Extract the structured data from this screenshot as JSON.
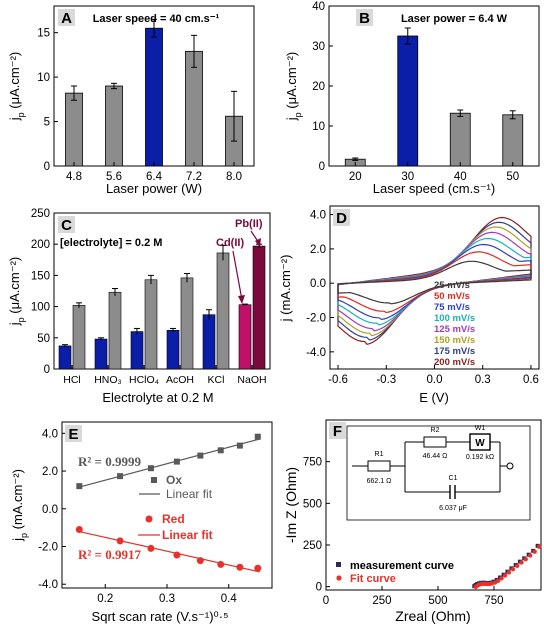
{
  "colors": {
    "grey": "#8c8c8c",
    "blue": "#0a1ea8",
    "pink": "#c0106a",
    "maroon": "#7a0a3c",
    "black": "#000000",
    "ox": "#595959",
    "red": "#e8312a",
    "panel_label_bg": "#d9d9d9",
    "meas": "#2b2b55",
    "fit": "#e8312a"
  },
  "chart_data": [
    {
      "id": "A",
      "type": "bar",
      "panel_label": "A",
      "annotation": "Laser speed = 40 cm.s⁻¹",
      "categories": [
        "4.8",
        "5.6",
        "6.4",
        "7.2",
        "8.0"
      ],
      "values": [
        8.2,
        9.0,
        15.5,
        12.9,
        5.6
      ],
      "errors": [
        0.8,
        0.3,
        1.0,
        1.8,
        2.8
      ],
      "highlight_index": 2,
      "xlabel": "Laser power (W)",
      "ylabel_main": "j",
      "ylabel_sub": "p",
      "ylabel_unit": " (μA.cm⁻²)",
      "ylim": [
        0,
        18
      ],
      "yticks": [
        "0",
        "5",
        "10",
        "15"
      ]
    },
    {
      "id": "B",
      "type": "bar",
      "panel_label": "B",
      "annotation": "Laser power = 6.4 W",
      "categories": [
        "20",
        "30",
        "40",
        "50"
      ],
      "values": [
        1.7,
        32.5,
        13.2,
        12.8
      ],
      "errors": [
        0.3,
        2.0,
        0.8,
        1.0
      ],
      "highlight_index": 1,
      "xlabel": "Laser speed (cm.s⁻¹)",
      "ylabel_main": "j",
      "ylabel_sub": "p",
      "ylabel_unit": " (μA.cm⁻²)",
      "ylim": [
        0,
        40
      ],
      "yticks": [
        "0",
        "10",
        "20",
        "30",
        "40"
      ]
    },
    {
      "id": "C",
      "type": "bar",
      "panel_label": "C",
      "annotation": "[electrolyte] = 0.2 M",
      "categories": [
        "HCl",
        "HNO₃",
        "HClO₄",
        "AcOH",
        "KCl",
        "NaOH"
      ],
      "series": [
        {
          "name": "Cd(II)",
          "values": [
            37,
            48,
            60,
            62,
            87,
            103
          ],
          "errors": [
            2,
            2,
            5,
            3,
            8,
            1
          ]
        },
        {
          "name": "Pb(II)",
          "values": [
            102,
            123,
            143,
            146,
            186,
            197
          ],
          "errors": [
            4,
            6,
            7,
            7,
            12,
            3
          ]
        }
      ],
      "callouts": [
        "Cd(II)",
        "Pb(II)"
      ],
      "xlabel": "Electrolyte at 0.2 M",
      "ylabel_main": "j",
      "ylabel_sub": "p",
      "ylabel_unit": " (μA.cm⁻²)",
      "ylim": [
        0,
        250
      ],
      "yticks": [
        "0",
        "50",
        "100",
        "150",
        "200",
        "250"
      ]
    },
    {
      "id": "D",
      "type": "line",
      "panel_label": "D",
      "series": [
        {
          "name": "25 mV/s",
          "color": "#3a3a3a",
          "scale": 0.32
        },
        {
          "name": "50 mV/s",
          "color": "#e0281f",
          "scale": 0.45
        },
        {
          "name": "75 mV/s",
          "color": "#2a3fc0",
          "scale": 0.55
        },
        {
          "name": "100 mV/s",
          "color": "#1ab3b3",
          "scale": 0.63
        },
        {
          "name": "125 mV/s",
          "color": "#9c3cc0",
          "scale": 0.71
        },
        {
          "name": "150 mV/s",
          "color": "#b0a020",
          "scale": 0.78
        },
        {
          "name": "175 mV/s",
          "color": "#2a3f90",
          "scale": 0.84
        },
        {
          "name": "200 mV/s",
          "color": "#8a1f1f",
          "scale": 0.9
        }
      ],
      "xlabel": "E (V)",
      "ylabel": "j (mA.cm⁻²)",
      "xlim": [
        -0.65,
        0.65
      ],
      "ylim": [
        -5,
        4.5
      ],
      "xticks": [
        "-0.6",
        "-0.3",
        "0.0",
        "0.3",
        "0.6"
      ],
      "yticks": [
        "-4.0",
        "-2.0",
        "0.0",
        "2.0",
        "4.0"
      ]
    },
    {
      "id": "E",
      "type": "scatter",
      "panel_label": "E",
      "series": [
        {
          "name": "Ox",
          "fit_name": "Linear fit",
          "x": [
            0.158,
            0.224,
            0.274,
            0.316,
            0.354,
            0.387,
            0.418,
            0.447
          ],
          "y": [
            1.2,
            1.73,
            2.15,
            2.5,
            2.82,
            3.1,
            3.35,
            3.82
          ],
          "r2": "R² = 0.9999"
        },
        {
          "name": "Red",
          "fit_name": "Linear fit",
          "x": [
            0.158,
            0.224,
            0.274,
            0.316,
            0.354,
            0.387,
            0.418,
            0.447
          ],
          "y": [
            -1.1,
            -1.7,
            -2.1,
            -2.45,
            -2.75,
            -2.95,
            -3.1,
            -3.15
          ],
          "r2": "R² = 0.9917"
        }
      ],
      "xlabel": "Sqrt scan rate (V.s⁻¹)⁰·⁵",
      "ylabel_main": "j",
      "ylabel_sub": "p",
      "ylabel_unit": " (mA.cm⁻²)",
      "xlim": [
        0.13,
        0.47
      ],
      "ylim": [
        -4.2,
        4.6
      ],
      "xticks": [
        "0.2",
        "0.3",
        "0.4"
      ],
      "yticks": [
        "-4.0",
        "-2.0",
        "0.0",
        "2.0",
        "4.0"
      ]
    },
    {
      "id": "F",
      "type": "scatter",
      "panel_label": "F",
      "circuit": {
        "R1": "R1",
        "R1_val": "662.1 Ω",
        "R2": "R2",
        "R2_val": "46.44 Ω",
        "W1": "W1",
        "W1_val": "0.192 kΩ",
        "W1_symbol": "W",
        "C1": "C1",
        "C1_val": "6.037 μF"
      },
      "series": [
        {
          "name": "measurement curve",
          "x": [
            662,
            668,
            675,
            683,
            692,
            702,
            712,
            723,
            735,
            748,
            762,
            777,
            793,
            810,
            828,
            847,
            866,
            885,
            905,
            925,
            945
          ],
          "y": [
            3,
            10,
            16,
            20,
            23,
            24,
            23,
            22,
            24,
            30,
            40,
            55,
            72,
            90,
            110,
            130,
            150,
            170,
            192,
            215,
            245
          ]
        },
        {
          "name": "Fit curve",
          "x": [
            662,
            668,
            675,
            683,
            692,
            702,
            712,
            723,
            735,
            748,
            762,
            777,
            793,
            810,
            828,
            847,
            866,
            885,
            905,
            925,
            945
          ],
          "y": [
            4,
            11,
            17,
            21,
            23,
            23,
            22,
            22,
            25,
            31,
            41,
            56,
            73,
            91,
            111,
            131,
            151,
            171,
            193,
            216,
            246
          ]
        }
      ],
      "xlabel": "Zreal (Ohm)",
      "ylabel": "-Im Z (Ohm)",
      "xlim": [
        0,
        960
      ],
      "ylim": [
        -20,
        1000
      ],
      "xticks": [
        "0",
        "250",
        "500",
        "750"
      ],
      "yticks": [
        "0",
        "250",
        "500",
        "750"
      ]
    }
  ]
}
